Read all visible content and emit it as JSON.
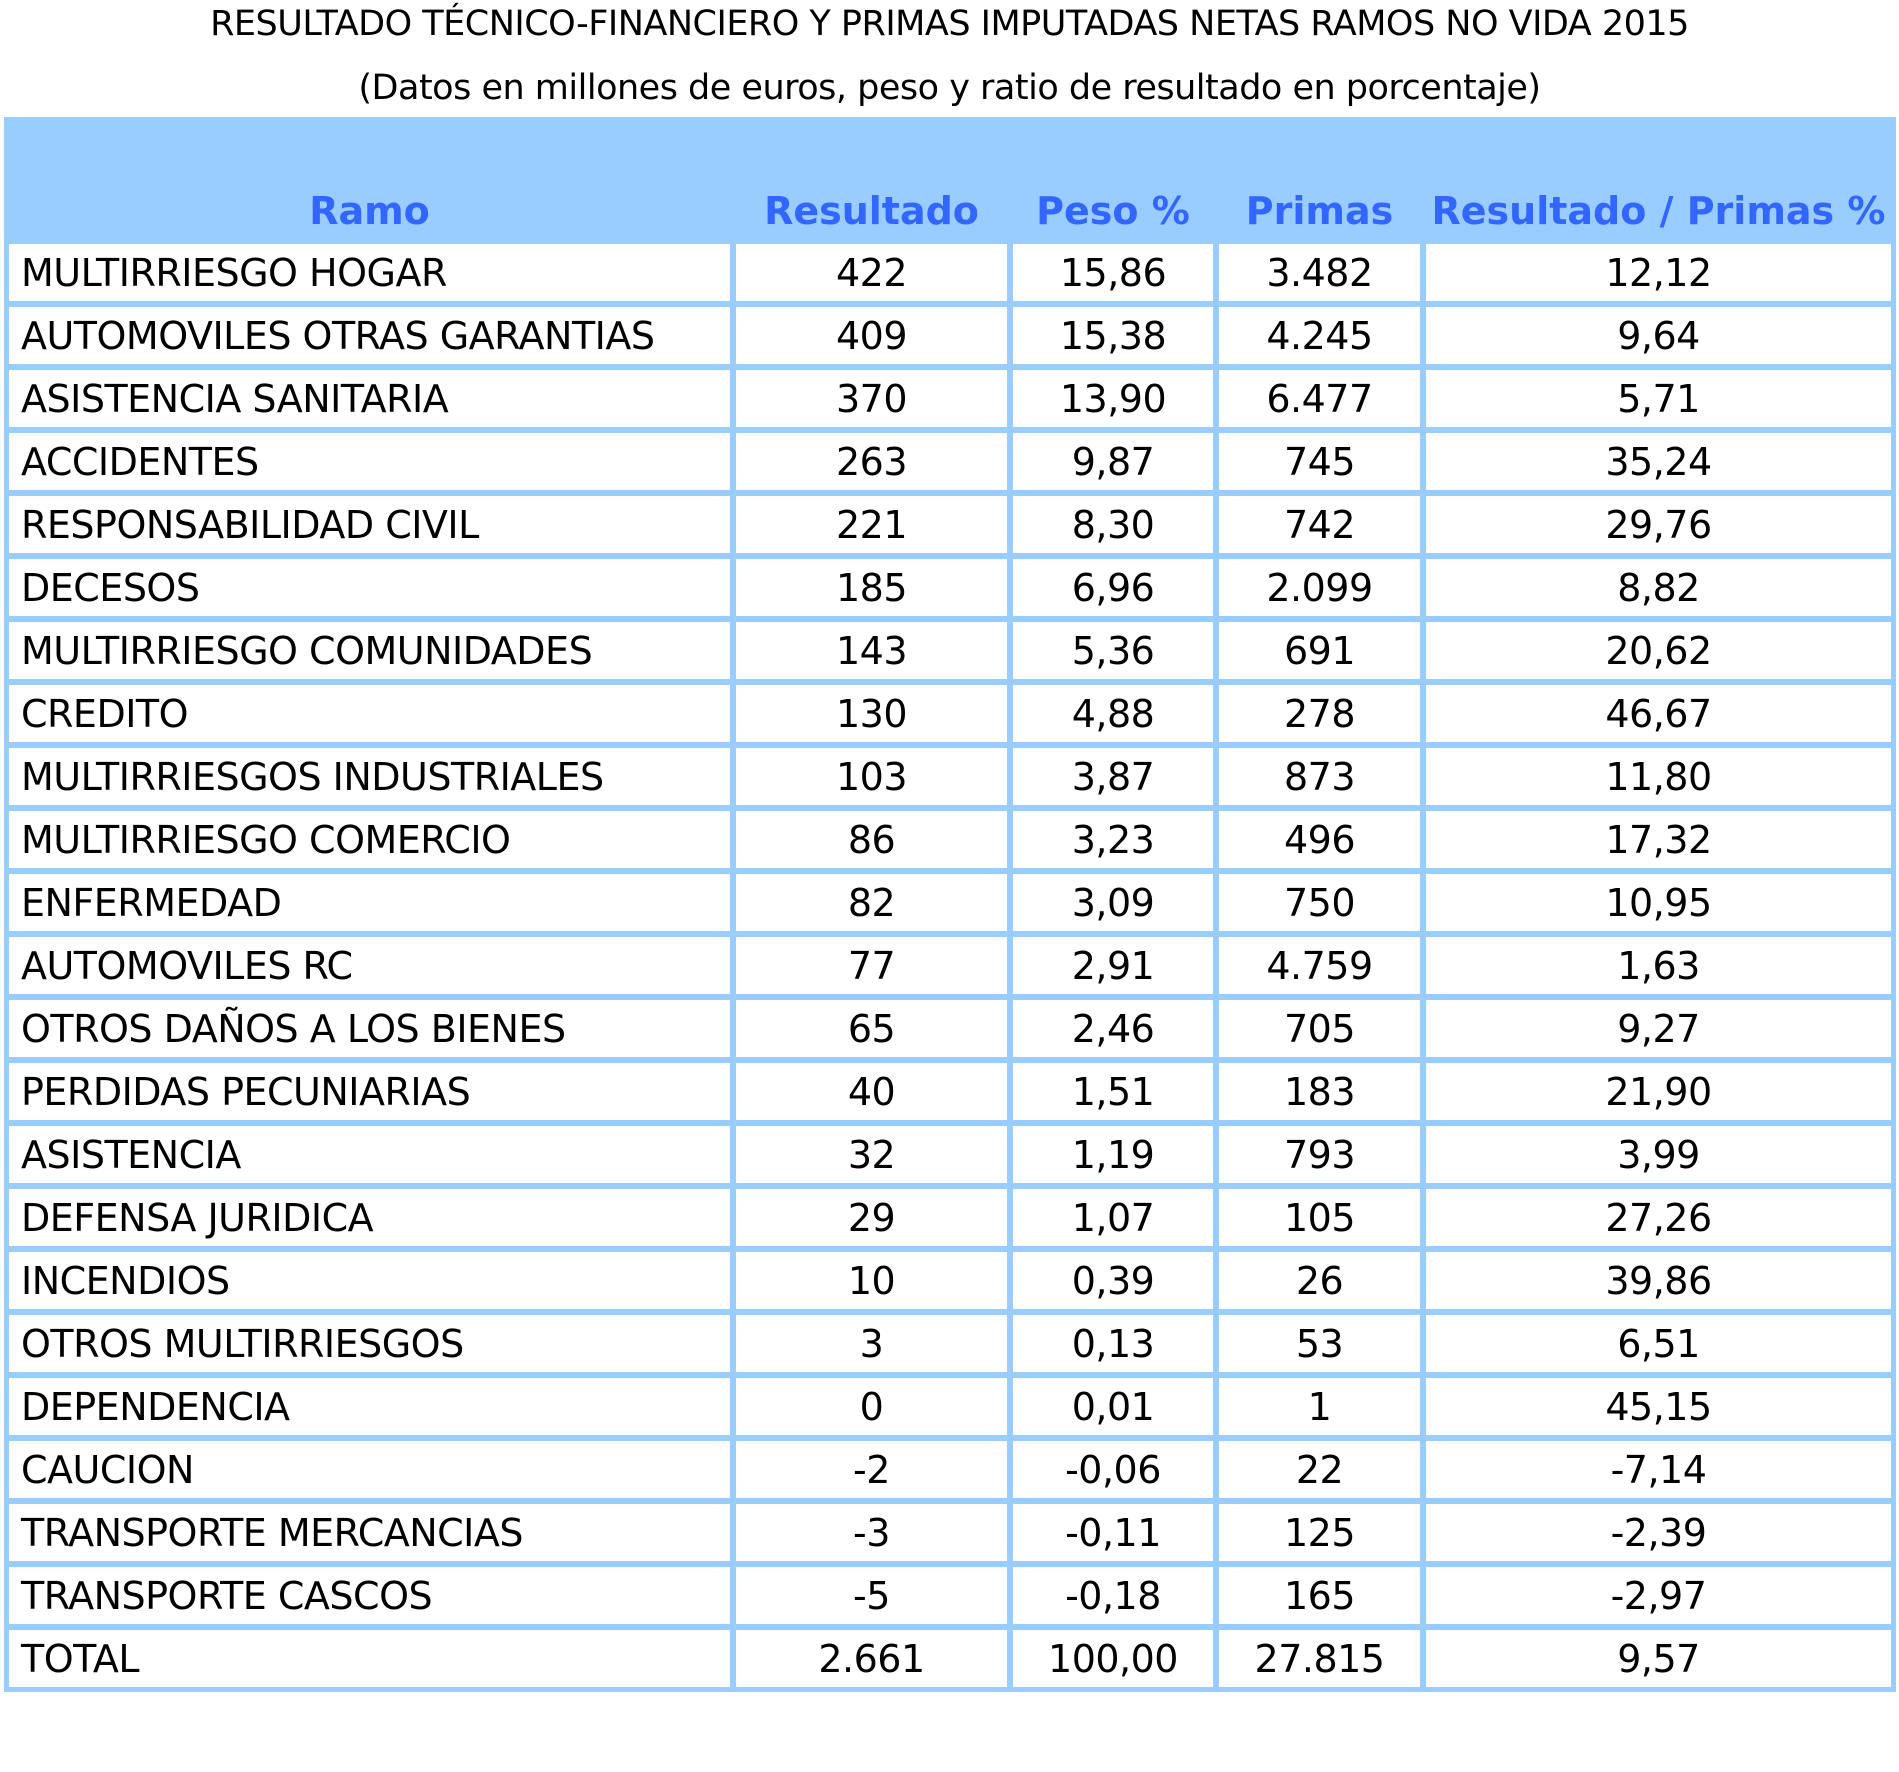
{
  "title": "RESULTADO TÉCNICO-FINANCIERO Y PRIMAS IMPUTADAS NETAS RAMOS NO VIDA 2015",
  "subtitle": "(Datos en millones de euros, peso y ratio de resultado en porcentaje)",
  "colors": {
    "header_bg": "#99ccff",
    "header_text": "#3366ff",
    "border": "#99ccff"
  },
  "columns": [
    "Ramo",
    "Resultado",
    "Peso %",
    "Primas",
    "Resultado / Primas %"
  ],
  "rows": [
    [
      "MULTIRRIESGO HOGAR",
      "422",
      "15,86",
      "3.482",
      "12,12"
    ],
    [
      "AUTOMOVILES OTRAS GARANTIAS",
      "409",
      "15,38",
      "4.245",
      "9,64"
    ],
    [
      "ASISTENCIA SANITARIA",
      "370",
      "13,90",
      "6.477",
      "5,71"
    ],
    [
      "ACCIDENTES",
      "263",
      "9,87",
      "745",
      "35,24"
    ],
    [
      "RESPONSABILIDAD CIVIL",
      "221",
      "8,30",
      "742",
      "29,76"
    ],
    [
      "DECESOS",
      "185",
      "6,96",
      "2.099",
      "8,82"
    ],
    [
      "MULTIRRIESGO COMUNIDADES",
      "143",
      "5,36",
      "691",
      "20,62"
    ],
    [
      "CREDITO",
      "130",
      "4,88",
      "278",
      "46,67"
    ],
    [
      "MULTIRRIESGOS INDUSTRIALES",
      "103",
      "3,87",
      "873",
      "11,80"
    ],
    [
      "MULTIRRIESGO COMERCIO",
      "86",
      "3,23",
      "496",
      "17,32"
    ],
    [
      "ENFERMEDAD",
      "82",
      "3,09",
      "750",
      "10,95"
    ],
    [
      "AUTOMOVILES RC",
      "77",
      "2,91",
      "4.759",
      "1,63"
    ],
    [
      "OTROS DAÑOS A LOS BIENES",
      "65",
      "2,46",
      "705",
      "9,27"
    ],
    [
      "PERDIDAS PECUNIARIAS",
      "40",
      "1,51",
      "183",
      "21,90"
    ],
    [
      "ASISTENCIA",
      "32",
      "1,19",
      "793",
      "3,99"
    ],
    [
      "DEFENSA JURIDICA",
      "29",
      "1,07",
      "105",
      "27,26"
    ],
    [
      "INCENDIOS",
      "10",
      "0,39",
      "26",
      "39,86"
    ],
    [
      "OTROS MULTIRRIESGOS",
      "3",
      "0,13",
      "53",
      "6,51"
    ],
    [
      "DEPENDENCIA",
      "0",
      "0,01",
      "1",
      "45,15"
    ],
    [
      "CAUCION",
      "-2",
      "-0,06",
      "22",
      "-7,14"
    ],
    [
      "TRANSPORTE MERCANCIAS",
      "-3",
      "-0,11",
      "125",
      "-2,39"
    ],
    [
      "TRANSPORTE CASCOS",
      "-5",
      "-0,18",
      "165",
      "-2,97"
    ],
    [
      "TOTAL",
      "2.661",
      "100,00",
      "27.815",
      "9,57"
    ]
  ]
}
